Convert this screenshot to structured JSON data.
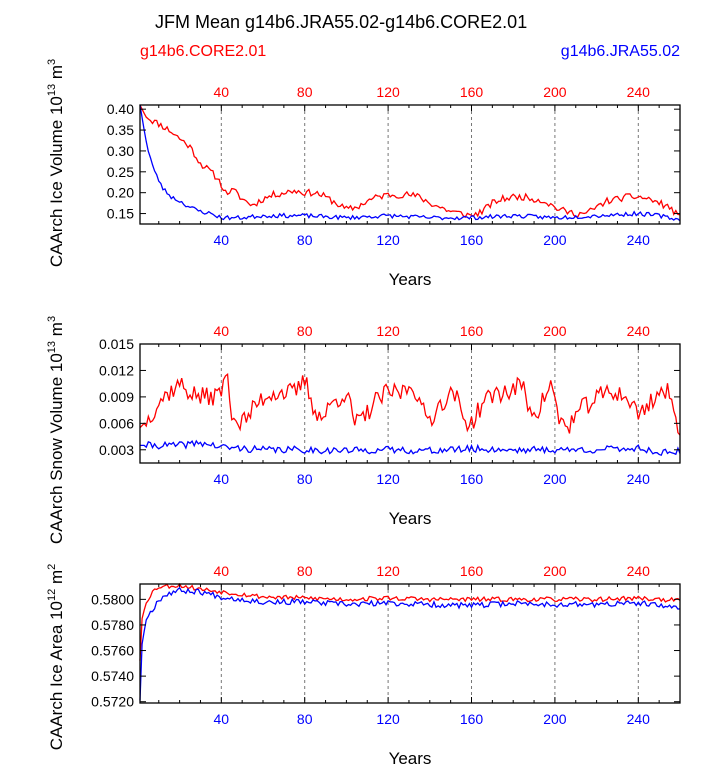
{
  "title": "JFM Mean g14b6.JRA55.02-g14b6.CORE2.01",
  "legend": {
    "left": {
      "label": "g14b6.CORE2.01",
      "color": "#ff0000"
    },
    "right": {
      "label": "g14b6.JRA55.02",
      "color": "#0000ff"
    }
  },
  "colors": {
    "core": "#ff0000",
    "jra": "#0000ff",
    "axis": "#000000",
    "grid": "#777777"
  },
  "chart_data": [
    {
      "type": "line",
      "panel": "ice-volume",
      "ylabel_main": "CAArch Ice Volume 10",
      "ylabel_exp1": "13",
      "ylabel_mid": " m",
      "ylabel_exp2": "3",
      "xlabel": "Years",
      "xlim": [
        1,
        260
      ],
      "ylim": [
        0.125,
        0.41
      ],
      "yticks": [
        0.15,
        0.2,
        0.25,
        0.3,
        0.35,
        0.4
      ],
      "ytick_labels": [
        "0.15",
        "0.20",
        "0.25",
        "0.30",
        "0.35",
        "0.40"
      ],
      "xticks": [
        40,
        80,
        120,
        160,
        200,
        240
      ],
      "xtick_labels": [
        "40",
        "80",
        "120",
        "160",
        "200",
        "240"
      ],
      "series": [
        {
          "name": "g14b6.CORE2.01",
          "color": "#ff0000",
          "keypoints": [
            [
              1,
              0.41
            ],
            [
              3,
              0.39
            ],
            [
              6,
              0.375
            ],
            [
              10,
              0.365
            ],
            [
              15,
              0.35
            ],
            [
              20,
              0.33
            ],
            [
              25,
              0.31
            ],
            [
              30,
              0.27
            ],
            [
              35,
              0.25
            ],
            [
              38,
              0.235
            ],
            [
              40,
              0.22
            ],
            [
              42,
              0.2
            ],
            [
              46,
              0.205
            ],
            [
              50,
              0.185
            ],
            [
              55,
              0.17
            ],
            [
              60,
              0.185
            ],
            [
              65,
              0.195
            ],
            [
              70,
              0.2
            ],
            [
              75,
              0.205
            ],
            [
              80,
              0.2
            ],
            [
              85,
              0.2
            ],
            [
              90,
              0.19
            ],
            [
              95,
              0.175
            ],
            [
              100,
              0.16
            ],
            [
              105,
              0.165
            ],
            [
              110,
              0.18
            ],
            [
              115,
              0.19
            ],
            [
              120,
              0.195
            ],
            [
              125,
              0.195
            ],
            [
              130,
              0.195
            ],
            [
              135,
              0.19
            ],
            [
              140,
              0.175
            ],
            [
              145,
              0.165
            ],
            [
              150,
              0.155
            ],
            [
              155,
              0.15
            ],
            [
              160,
              0.145
            ],
            [
              165,
              0.155
            ],
            [
              170,
              0.175
            ],
            [
              175,
              0.185
            ],
            [
              180,
              0.19
            ],
            [
              185,
              0.19
            ],
            [
              190,
              0.185
            ],
            [
              195,
              0.18
            ],
            [
              200,
              0.165
            ],
            [
              205,
              0.155
            ],
            [
              210,
              0.15
            ],
            [
              215,
              0.15
            ],
            [
              220,
              0.165
            ],
            [
              225,
              0.18
            ],
            [
              230,
              0.185
            ],
            [
              235,
              0.19
            ],
            [
              240,
              0.19
            ],
            [
              245,
              0.185
            ],
            [
              250,
              0.175
            ],
            [
              255,
              0.165
            ],
            [
              260,
              0.14
            ]
          ],
          "noise": 0.008,
          "seed": 11
        },
        {
          "name": "g14b6.JRA55.02",
          "color": "#0000ff",
          "keypoints": [
            [
              1,
              0.41
            ],
            [
              3,
              0.35
            ],
            [
              5,
              0.3
            ],
            [
              8,
              0.25
            ],
            [
              12,
              0.21
            ],
            [
              16,
              0.19
            ],
            [
              20,
              0.18
            ],
            [
              25,
              0.165
            ],
            [
              30,
              0.155
            ],
            [
              35,
              0.15
            ],
            [
              40,
              0.14
            ],
            [
              45,
              0.14
            ],
            [
              50,
              0.14
            ],
            [
              60,
              0.145
            ],
            [
              80,
              0.145
            ],
            [
              100,
              0.14
            ],
            [
              120,
              0.145
            ],
            [
              140,
              0.14
            ],
            [
              160,
              0.14
            ],
            [
              180,
              0.145
            ],
            [
              200,
              0.14
            ],
            [
              220,
              0.145
            ],
            [
              240,
              0.15
            ],
            [
              250,
              0.145
            ],
            [
              260,
              0.135
            ]
          ],
          "noise": 0.005,
          "seed": 23
        }
      ]
    },
    {
      "type": "line",
      "panel": "snow-volume",
      "ylabel_main": "CAArch Snow Volume 10",
      "ylabel_exp1": "13",
      "ylabel_mid": " m",
      "ylabel_exp2": "3",
      "xlabel": "Years",
      "xlim": [
        1,
        260
      ],
      "ylim": [
        0.0015,
        0.015
      ],
      "yticks": [
        0.003,
        0.006,
        0.009,
        0.012,
        0.015
      ],
      "ytick_labels": [
        "0.003",
        "0.006",
        "0.009",
        "0.012",
        "0.015"
      ],
      "xticks": [
        40,
        80,
        120,
        160,
        200,
        240
      ],
      "xtick_labels": [
        "40",
        "80",
        "120",
        "160",
        "200",
        "240"
      ],
      "series": [
        {
          "name": "g14b6.CORE2.01",
          "color": "#ff0000",
          "keypoints": [
            [
              1,
              0.0055
            ],
            [
              5,
              0.0065
            ],
            [
              10,
              0.0085
            ],
            [
              15,
              0.0095
            ],
            [
              20,
              0.0105
            ],
            [
              25,
              0.0095
            ],
            [
              30,
              0.009
            ],
            [
              35,
              0.009
            ],
            [
              40,
              0.0095
            ],
            [
              42,
              0.012
            ],
            [
              45,
              0.0075
            ],
            [
              48,
              0.006
            ],
            [
              52,
              0.0065
            ],
            [
              58,
              0.0085
            ],
            [
              64,
              0.0095
            ],
            [
              70,
              0.0095
            ],
            [
              76,
              0.0095
            ],
            [
              80,
              0.011
            ],
            [
              84,
              0.008
            ],
            [
              88,
              0.0065
            ],
            [
              94,
              0.0085
            ],
            [
              100,
              0.0095
            ],
            [
              104,
              0.006
            ],
            [
              108,
              0.0065
            ],
            [
              114,
              0.0085
            ],
            [
              120,
              0.0095
            ],
            [
              126,
              0.0095
            ],
            [
              132,
              0.0105
            ],
            [
              136,
              0.0075
            ],
            [
              140,
              0.0065
            ],
            [
              146,
              0.0085
            ],
            [
              152,
              0.0095
            ],
            [
              156,
              0.0065
            ],
            [
              160,
              0.006
            ],
            [
              166,
              0.0085
            ],
            [
              172,
              0.0095
            ],
            [
              178,
              0.0095
            ],
            [
              184,
              0.0105
            ],
            [
              188,
              0.0075
            ],
            [
              192,
              0.0075
            ],
            [
              198,
              0.0105
            ],
            [
              202,
              0.0065
            ],
            [
              206,
              0.0055
            ],
            [
              212,
              0.0075
            ],
            [
              218,
              0.0085
            ],
            [
              224,
              0.0095
            ],
            [
              230,
              0.0095
            ],
            [
              236,
              0.0085
            ],
            [
              240,
              0.007
            ],
            [
              246,
              0.0085
            ],
            [
              250,
              0.0095
            ],
            [
              254,
              0.0095
            ],
            [
              258,
              0.0065
            ],
            [
              260,
              0.0055
            ]
          ],
          "noise": 0.0011,
          "seed": 37
        },
        {
          "name": "g14b6.JRA55.02",
          "color": "#0000ff",
          "keypoints": [
            [
              1,
              0.0035
            ],
            [
              20,
              0.0035
            ],
            [
              30,
              0.0038
            ],
            [
              40,
              0.0033
            ],
            [
              60,
              0.003
            ],
            [
              80,
              0.003
            ],
            [
              100,
              0.0029
            ],
            [
              120,
              0.003
            ],
            [
              140,
              0.0029
            ],
            [
              160,
              0.0031
            ],
            [
              180,
              0.003
            ],
            [
              200,
              0.003
            ],
            [
              220,
              0.003
            ],
            [
              240,
              0.0032
            ],
            [
              250,
              0.0027
            ],
            [
              260,
              0.0028
            ]
          ],
          "noise": 0.0004,
          "seed": 41
        }
      ]
    },
    {
      "type": "line",
      "panel": "ice-area",
      "ylabel_main": "CAArch Ice Area 10",
      "ylabel_exp1": "12",
      "ylabel_mid": " m",
      "ylabel_exp2": "2",
      "xlabel": "Years",
      "xlim": [
        1,
        260
      ],
      "ylim": [
        0.5719,
        0.5812
      ],
      "yticks": [
        0.572,
        0.574,
        0.576,
        0.578,
        0.58
      ],
      "ytick_labels": [
        "0.5720",
        "0.5740",
        "0.5760",
        "0.5780",
        "0.5800"
      ],
      "xticks": [
        40,
        80,
        120,
        160,
        200,
        240
      ],
      "xtick_labels": [
        "40",
        "80",
        "120",
        "160",
        "200",
        "240"
      ],
      "series": [
        {
          "name": "g14b6.CORE2.01",
          "color": "#ff0000",
          "keypoints": [
            [
              1,
              0.5752
            ],
            [
              2,
              0.5785
            ],
            [
              4,
              0.5798
            ],
            [
              7,
              0.5806
            ],
            [
              10,
              0.581
            ],
            [
              20,
              0.5811
            ],
            [
              30,
              0.5808
            ],
            [
              40,
              0.5806
            ],
            [
              60,
              0.5802
            ],
            [
              80,
              0.5801
            ],
            [
              100,
              0.58
            ],
            [
              120,
              0.5801
            ],
            [
              140,
              0.58
            ],
            [
              160,
              0.58
            ],
            [
              180,
              0.58
            ],
            [
              200,
              0.58
            ],
            [
              220,
              0.58
            ],
            [
              240,
              0.5801
            ],
            [
              260,
              0.5799
            ]
          ],
          "noise": 0.00018,
          "seed": 53
        },
        {
          "name": "g14b6.JRA55.02",
          "color": "#0000ff",
          "keypoints": [
            [
              1,
              0.5721
            ],
            [
              2,
              0.5765
            ],
            [
              4,
              0.5785
            ],
            [
              7,
              0.5792
            ],
            [
              10,
              0.58
            ],
            [
              15,
              0.5805
            ],
            [
              20,
              0.5807
            ],
            [
              30,
              0.5806
            ],
            [
              40,
              0.5802
            ],
            [
              60,
              0.5798
            ],
            [
              80,
              0.5798
            ],
            [
              100,
              0.5796
            ],
            [
              120,
              0.5797
            ],
            [
              140,
              0.5796
            ],
            [
              160,
              0.5795
            ],
            [
              180,
              0.5797
            ],
            [
              200,
              0.5796
            ],
            [
              220,
              0.5796
            ],
            [
              240,
              0.5797
            ],
            [
              260,
              0.5793
            ]
          ],
          "noise": 0.00022,
          "seed": 67
        }
      ]
    }
  ]
}
